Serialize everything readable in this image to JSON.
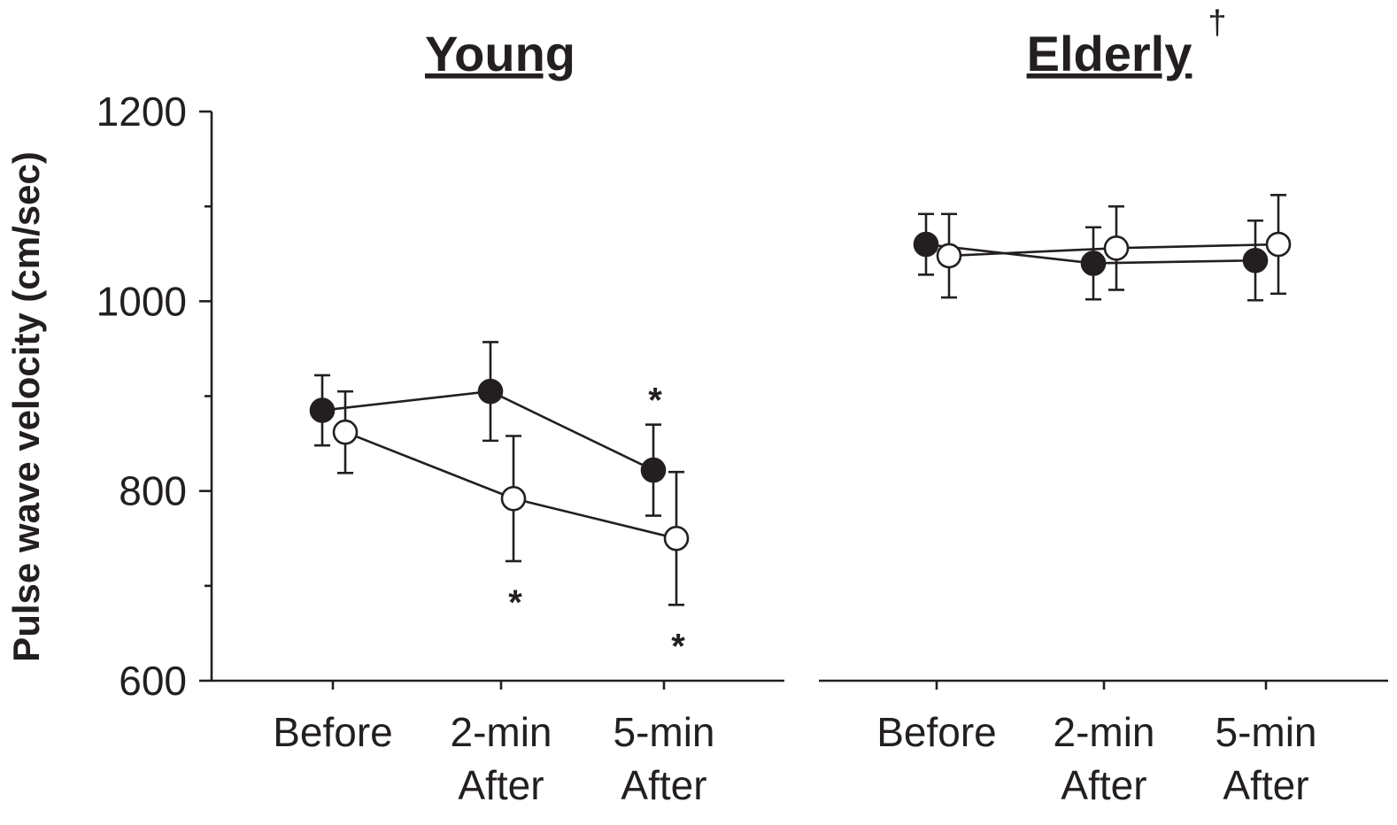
{
  "chart_data": {
    "type": "line",
    "ylabel": "Pulse wave velocity (cm/sec)",
    "ylim": [
      600,
      1200
    ],
    "yticks": [
      600,
      800,
      1000,
      1200
    ],
    "y_minor_ticks": [
      700,
      900,
      1100
    ],
    "categories": [
      "Before",
      "2-min After",
      "5-min After"
    ],
    "category_labels": [
      [
        "Before"
      ],
      [
        "2-min",
        "After"
      ],
      [
        "5-min",
        "After"
      ]
    ],
    "colors": {
      "ink": "#231f20",
      "closed_marker": "#231f20",
      "open_marker": "#ffffff"
    },
    "panels": [
      {
        "title": "Young",
        "title_marker": "",
        "series": [
          {
            "marker": "filled-circle",
            "values": [
              885,
              905,
              822
            ],
            "error": [
              37,
              52,
              48
            ],
            "significance": [
              "",
              "",
              "*"
            ],
            "significance_position": "above"
          },
          {
            "marker": "open-circle",
            "values": [
              862,
              792,
              750
            ],
            "error": [
              43,
              66,
              70
            ],
            "significance": [
              "",
              "*",
              "*"
            ],
            "significance_position": "below"
          }
        ]
      },
      {
        "title": "Elderly",
        "title_marker": "†",
        "series": [
          {
            "marker": "filled-circle",
            "values": [
              1060,
              1040,
              1043
            ],
            "error": [
              32,
              38,
              42
            ],
            "significance": [
              "",
              "",
              ""
            ],
            "significance_position": "above"
          },
          {
            "marker": "open-circle",
            "values": [
              1048,
              1056,
              1060
            ],
            "error": [
              44,
              44,
              52
            ],
            "significance": [
              "",
              "",
              ""
            ],
            "significance_position": "below"
          }
        ]
      }
    ]
  }
}
